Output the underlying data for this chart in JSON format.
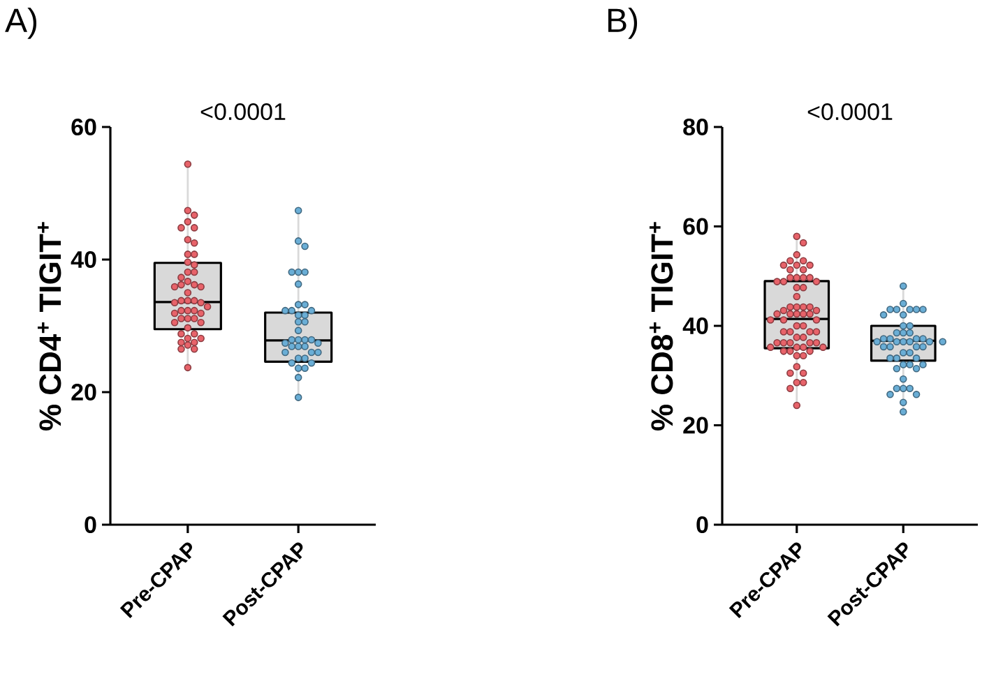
{
  "chart_data": [
    {
      "type": "box",
      "title": "A)",
      "ylabel": "% CD4$^{+}$ TIGIT$^{+}$",
      "categories": [
        "Pre-CPAP",
        "Post-CPAP"
      ],
      "ylim": [
        0,
        60
      ],
      "yticks": [
        0,
        20,
        40,
        60
      ],
      "annotations": [
        "<0.0001"
      ],
      "marker": "circle",
      "series": [
        {
          "type": "box",
          "color": "#d9d9d9",
          "boxes": [
            {
              "low": 23.7,
              "q1": 29.5,
              "median": 33.6,
              "q3": 39.5,
              "high": 54.4
            },
            {
              "low": 19.2,
              "q1": 24.6,
              "median": 27.8,
              "q3": 32,
              "high": 47.4
            }
          ]
        },
        {
          "type": "scatter",
          "color": "#e8636a",
          "x": [
            "Pre-CPAP",
            "Pre-CPAP",
            "Pre-CPAP",
            "Pre-CPAP",
            "Pre-CPAP",
            "Pre-CPAP",
            "Pre-CPAP",
            "Pre-CPAP",
            "Pre-CPAP",
            "Pre-CPAP",
            "Pre-CPAP",
            "Pre-CPAP",
            "Pre-CPAP",
            "Pre-CPAP",
            "Pre-CPAP",
            "Pre-CPAP",
            "Pre-CPAP",
            "Pre-CPAP",
            "Pre-CPAP",
            "Pre-CPAP",
            "Pre-CPAP",
            "Pre-CPAP",
            "Pre-CPAP",
            "Pre-CPAP",
            "Pre-CPAP",
            "Pre-CPAP",
            "Pre-CPAP",
            "Pre-CPAP",
            "Pre-CPAP",
            "Pre-CPAP",
            "Pre-CPAP",
            "Pre-CPAP",
            "Pre-CPAP",
            "Pre-CPAP",
            "Pre-CPAP",
            "Pre-CPAP",
            "Pre-CPAP",
            "Pre-CPAP",
            "Pre-CPAP",
            "Pre-CPAP",
            "Pre-CPAP",
            "Pre-CPAP",
            "Pre-CPAP",
            "Pre-CPAP",
            "Pre-CPAP",
            "Pre-CPAP",
            "Pre-CPAP",
            "Pre-CPAP"
          ],
          "values": [
            54.4,
            47.4,
            46.7,
            45.7,
            44.8,
            44.8,
            43,
            42.5,
            40.8,
            40.8,
            39.6,
            39.2,
            38.1,
            38.1,
            37.3,
            36.7,
            36.2,
            36.2,
            35.9,
            35.9,
            35,
            33.8,
            33.8,
            33.8,
            33.5,
            33.5,
            32.9,
            32.3,
            32.3,
            32.3,
            31.9,
            31.9,
            31.1,
            31.1,
            31.1,
            30.5,
            30.5,
            29.7,
            28.8,
            28.8,
            28.1,
            28.1,
            27.5,
            27.5,
            27.1,
            26.5,
            26.5,
            23.7
          ]
        },
        {
          "type": "scatter",
          "color": "#6aaed6",
          "x": [
            "Post-CPAP",
            "Post-CPAP",
            "Post-CPAP",
            "Post-CPAP",
            "Post-CPAP",
            "Post-CPAP",
            "Post-CPAP",
            "Post-CPAP",
            "Post-CPAP",
            "Post-CPAP",
            "Post-CPAP",
            "Post-CPAP",
            "Post-CPAP",
            "Post-CPAP",
            "Post-CPAP",
            "Post-CPAP",
            "Post-CPAP",
            "Post-CPAP",
            "Post-CPAP",
            "Post-CPAP",
            "Post-CPAP",
            "Post-CPAP",
            "Post-CPAP",
            "Post-CPAP",
            "Post-CPAP",
            "Post-CPAP",
            "Post-CPAP",
            "Post-CPAP",
            "Post-CPAP",
            "Post-CPAP",
            "Post-CPAP",
            "Post-CPAP",
            "Post-CPAP",
            "Post-CPAP",
            "Post-CPAP",
            "Post-CPAP",
            "Post-CPAP"
          ],
          "values": [
            47.4,
            42.8,
            42,
            38.1,
            38.1,
            38.1,
            36.3,
            33.2,
            33.2,
            32.3,
            32.3,
            32.3,
            31.6,
            31.6,
            30.6,
            30.6,
            29.3,
            27.9,
            27.9,
            27.9,
            27.9,
            27.4,
            27.4,
            26.9,
            26.9,
            26.9,
            26,
            26,
            26,
            25.1,
            25.1,
            24.4,
            24.4,
            23.6,
            23.6,
            22.2,
            19.2
          ]
        }
      ]
    },
    {
      "type": "box",
      "title": "B)",
      "ylabel": "% CD8$^{+}$ TIGIT$^{+}$",
      "categories": [
        "Pre-CPAP",
        "Post-CPAP"
      ],
      "ylim": [
        0,
        80
      ],
      "yticks": [
        0,
        20,
        40,
        60,
        80
      ],
      "annotations": [
        "<0.0001"
      ],
      "marker": "circle",
      "series": [
        {
          "type": "box",
          "color": "#d9d9d9",
          "boxes": [
            {
              "low": 24,
              "q1": 35.5,
              "median": 41.4,
              "q3": 49,
              "high": 58
            },
            {
              "low": 22.7,
              "q1": 33,
              "median": 37,
              "q3": 40,
              "high": 48
            }
          ]
        },
        {
          "type": "scatter",
          "color": "#e8636a",
          "x": [
            "Pre-CPAP",
            "Pre-CPAP",
            "Pre-CPAP",
            "Pre-CPAP",
            "Pre-CPAP",
            "Pre-CPAP",
            "Pre-CPAP",
            "Pre-CPAP",
            "Pre-CPAP",
            "Pre-CPAP",
            "Pre-CPAP",
            "Pre-CPAP",
            "Pre-CPAP",
            "Pre-CPAP",
            "Pre-CPAP",
            "Pre-CPAP",
            "Pre-CPAP",
            "Pre-CPAP",
            "Pre-CPAP",
            "Pre-CPAP",
            "Pre-CPAP",
            "Pre-CPAP",
            "Pre-CPAP",
            "Pre-CPAP",
            "Pre-CPAP",
            "Pre-CPAP",
            "Pre-CPAP",
            "Pre-CPAP",
            "Pre-CPAP",
            "Pre-CPAP",
            "Pre-CPAP",
            "Pre-CPAP",
            "Pre-CPAP",
            "Pre-CPAP",
            "Pre-CPAP",
            "Pre-CPAP",
            "Pre-CPAP",
            "Pre-CPAP",
            "Pre-CPAP",
            "Pre-CPAP",
            "Pre-CPAP",
            "Pre-CPAP",
            "Pre-CPAP",
            "Pre-CPAP",
            "Pre-CPAP",
            "Pre-CPAP",
            "Pre-CPAP",
            "Pre-CPAP",
            "Pre-CPAP",
            "Pre-CPAP",
            "Pre-CPAP",
            "Pre-CPAP",
            "Pre-CPAP",
            "Pre-CPAP",
            "Pre-CPAP",
            "Pre-CPAP",
            "Pre-CPAP",
            "Pre-CPAP",
            "Pre-CPAP",
            "Pre-CPAP",
            "Pre-CPAP",
            "Pre-CPAP",
            "Pre-CPAP"
          ],
          "values": [
            58,
            56.7,
            54.3,
            53.1,
            53.1,
            52.2,
            52.2,
            52.2,
            51.3,
            51.3,
            49.7,
            49.7,
            49.7,
            49.7,
            48.9,
            48.9,
            48.9,
            47.7,
            47.7,
            45.9,
            43.8,
            43.8,
            43.8,
            43.8,
            43.1,
            43.1,
            42.4,
            42.4,
            42.4,
            42.4,
            42.4,
            41.2,
            41.2,
            41.2,
            40,
            40,
            38.8,
            38.8,
            38.8,
            38.8,
            37.7,
            37.7,
            36.6,
            36.6,
            36.6,
            36.6,
            36.6,
            35.7,
            35.7,
            35.7,
            35.7,
            34.9,
            34.9,
            34.9,
            34,
            34,
            31.8,
            30.5,
            30.5,
            28.6,
            28.6,
            27.4,
            24
          ]
        },
        {
          "type": "scatter",
          "color": "#6aaed6",
          "x": [
            "Post-CPAP",
            "Post-CPAP",
            "Post-CPAP",
            "Post-CPAP",
            "Post-CPAP",
            "Post-CPAP",
            "Post-CPAP",
            "Post-CPAP",
            "Post-CPAP",
            "Post-CPAP",
            "Post-CPAP",
            "Post-CPAP",
            "Post-CPAP",
            "Post-CPAP",
            "Post-CPAP",
            "Post-CPAP",
            "Post-CPAP",
            "Post-CPAP",
            "Post-CPAP",
            "Post-CPAP",
            "Post-CPAP",
            "Post-CPAP",
            "Post-CPAP",
            "Post-CPAP",
            "Post-CPAP",
            "Post-CPAP",
            "Post-CPAP",
            "Post-CPAP",
            "Post-CPAP",
            "Post-CPAP",
            "Post-CPAP",
            "Post-CPAP",
            "Post-CPAP",
            "Post-CPAP",
            "Post-CPAP",
            "Post-CPAP",
            "Post-CPAP",
            "Post-CPAP",
            "Post-CPAP",
            "Post-CPAP",
            "Post-CPAP",
            "Post-CPAP",
            "Post-CPAP",
            "Post-CPAP",
            "Post-CPAP",
            "Post-CPAP"
          ],
          "values": [
            48,
            44.5,
            43.3,
            43.3,
            43.3,
            43.3,
            43.3,
            42.2,
            42.2,
            40,
            40,
            38.6,
            38.6,
            38.6,
            37.4,
            37.4,
            37.4,
            37.4,
            36.8,
            36.8,
            36.8,
            36.8,
            36.8,
            36.8,
            35.8,
            35.8,
            35.8,
            35.8,
            34.6,
            34.6,
            33.5,
            33.5,
            33.5,
            32.2,
            32.2,
            32.2,
            31.4,
            31.4,
            29.3,
            27.4,
            27.4,
            27.4,
            26.2,
            26.2,
            24.6,
            22.7
          ]
        }
      ]
    }
  ]
}
